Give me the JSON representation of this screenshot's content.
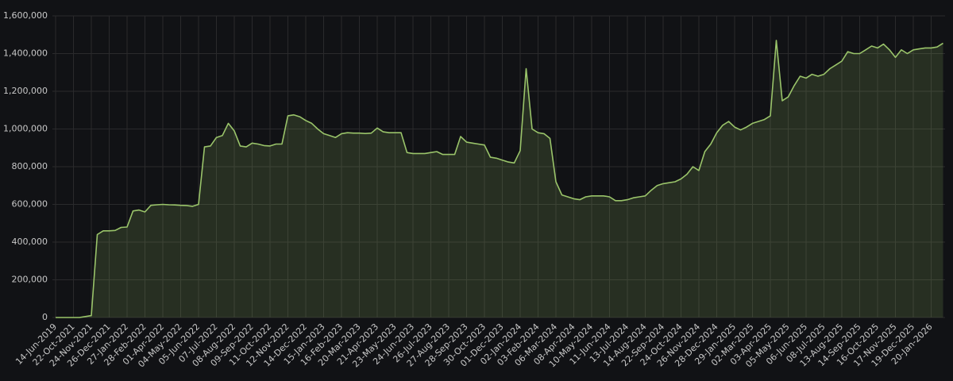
{
  "chart_data": {
    "type": "area",
    "categories": [
      "14-Jun-2019",
      null,
      null,
      "22-Oct-2021",
      null,
      null,
      "24-Nov-2021",
      null,
      null,
      "26-Dec-2021",
      null,
      null,
      "27-Jan-2022",
      null,
      null,
      "28-Feb-2022",
      null,
      null,
      "01-Apr-2022",
      null,
      null,
      "04-May-2022",
      null,
      null,
      "05-Jun-2022",
      null,
      null,
      "07-Jul-2022",
      null,
      null,
      "08-Aug-2022",
      null,
      null,
      "09-Sep-2022",
      null,
      null,
      "11-Oct-2022",
      null,
      null,
      "12-Nov-2022",
      null,
      null,
      "14-Dec-2022",
      null,
      null,
      "15-Jan-2023",
      null,
      null,
      "16-Feb-2023",
      null,
      null,
      "20-Mar-2023",
      null,
      null,
      "21-Apr-2023",
      null,
      null,
      "23-May-2023",
      null,
      null,
      "24-Jun-2023",
      null,
      null,
      "26-Jul-2023",
      null,
      null,
      "27-Aug-2023",
      null,
      null,
      "28-Sep-2023",
      null,
      null,
      "30-Oct-2023",
      null,
      null,
      "01-Dec-2023",
      null,
      null,
      "02-Jan-2024",
      null,
      null,
      "03-Feb-2024",
      null,
      null,
      "06-Mar-2024",
      null,
      null,
      "08-Apr-2024",
      null,
      null,
      "10-May-2024",
      null,
      null,
      "11-Jun-2024",
      null,
      null,
      "13-Jul-2024",
      null,
      null,
      "14-Aug-2024",
      null,
      null,
      "22-Sep-2024",
      null,
      null,
      "24-Oct-2024",
      null,
      null,
      "26-Nov-2024",
      null,
      null,
      "28-Dec-2024",
      null,
      null,
      "29-Jan-2025",
      null,
      null,
      "02-Mar-2025",
      null,
      null,
      "03-Apr-2025",
      null,
      null,
      "05-May-2025",
      null,
      null,
      "06-Jun-2025",
      null,
      null,
      "08-Jul-2025",
      null,
      null,
      "13-Aug-2025",
      null,
      null,
      "14-Sep-2025",
      null,
      null,
      "16-Oct-2025",
      null,
      null,
      "17-Nov-2025",
      null,
      null,
      "19-Dec-2025",
      null,
      null,
      "20-Jan-2026",
      null,
      null
    ],
    "values": [
      0,
      0,
      0,
      0,
      0,
      5000,
      10000,
      440000,
      460000,
      460000,
      462000,
      478000,
      480000,
      565000,
      570000,
      560000,
      595000,
      598000,
      600000,
      598000,
      597000,
      595000,
      594000,
      590000,
      600000,
      905000,
      910000,
      955000,
      965000,
      1030000,
      990000,
      910000,
      905000,
      925000,
      920000,
      912000,
      910000,
      920000,
      920000,
      1070000,
      1075000,
      1065000,
      1045000,
      1030000,
      1000000,
      975000,
      965000,
      955000,
      975000,
      980000,
      978000,
      978000,
      976000,
      978000,
      1005000,
      985000,
      980000,
      980000,
      980000,
      875000,
      870000,
      870000,
      870000,
      875000,
      880000,
      865000,
      865000,
      865000,
      960000,
      930000,
      925000,
      920000,
      915000,
      850000,
      845000,
      835000,
      825000,
      820000,
      885000,
      1320000,
      1000000,
      980000,
      975000,
      950000,
      720000,
      650000,
      640000,
      630000,
      625000,
      640000,
      645000,
      645000,
      645000,
      640000,
      620000,
      620000,
      625000,
      635000,
      640000,
      645000,
      675000,
      700000,
      710000,
      715000,
      720000,
      735000,
      760000,
      800000,
      780000,
      880000,
      920000,
      980000,
      1020000,
      1040000,
      1010000,
      995000,
      1010000,
      1030000,
      1040000,
      1050000,
      1070000,
      1470000,
      1150000,
      1170000,
      1230000,
      1280000,
      1270000,
      1290000,
      1280000,
      1290000,
      1320000,
      1340000,
      1360000,
      1410000,
      1400000,
      1400000,
      1420000,
      1440000,
      1430000,
      1450000,
      1420000,
      1380000,
      1420000,
      1400000,
      1420000,
      1425000,
      1430000,
      1430000,
      1435000,
      1455000
    ],
    "color": "#9ac46a",
    "ylim": [
      0,
      1600000
    ],
    "yticks": [
      {
        "value": 0,
        "label": "0"
      },
      {
        "value": 200000,
        "label": "200,000"
      },
      {
        "value": 400000,
        "label": "400,000"
      },
      {
        "value": 600000,
        "label": "600,000"
      },
      {
        "value": 800000,
        "label": "800,000"
      },
      {
        "value": 1000000,
        "label": "1,000,000"
      },
      {
        "value": 1200000,
        "label": "1,200,000"
      },
      {
        "value": 1400000,
        "label": "1,400,000"
      },
      {
        "value": 1600000,
        "label": "1,600,000"
      }
    ],
    "grid": true
  }
}
